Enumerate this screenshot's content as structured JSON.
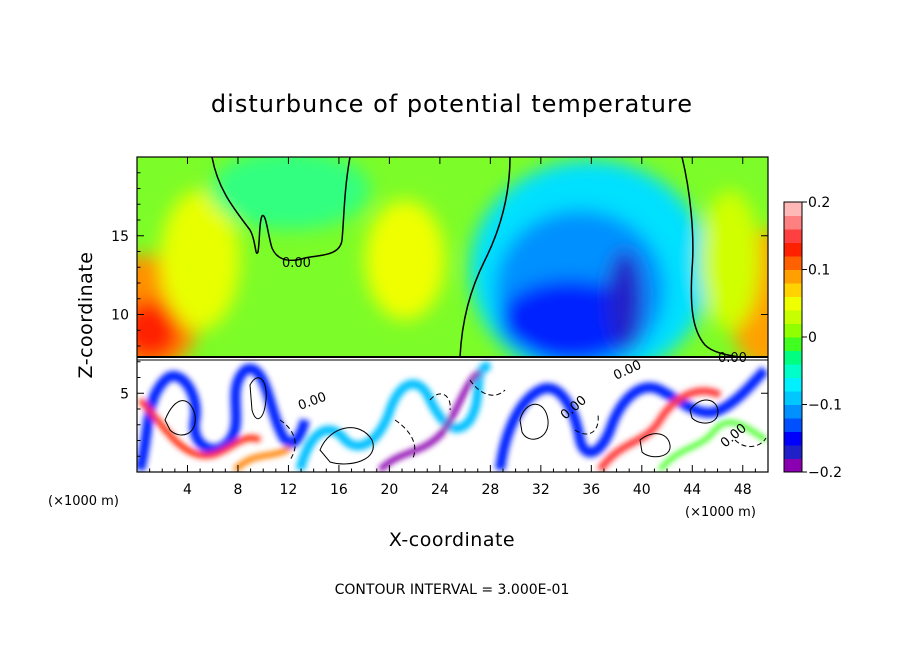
{
  "chart_data": {
    "type": "heatmap",
    "title": "disturbunce of potential temperature",
    "xlabel": "X-coordinate",
    "ylabel": "Z-coordinate",
    "x_unit": "(×1000 m)",
    "y_unit": "(×1000 m)",
    "xlim": [
      0,
      50
    ],
    "ylim": [
      0,
      20
    ],
    "x_ticks": [
      4,
      8,
      12,
      16,
      20,
      24,
      28,
      32,
      36,
      40,
      44,
      48
    ],
    "x_tick_labels": [
      "4",
      "8",
      "12",
      "16",
      "20",
      "24",
      "28",
      "32",
      "36",
      "40",
      "44",
      "48"
    ],
    "y_ticks": [
      5,
      10,
      15
    ],
    "y_tick_labels": [
      "5",
      "10",
      "15"
    ],
    "colorbar": {
      "range": [
        -0.2,
        0.2
      ],
      "ticks": [
        0.2,
        0.1,
        0,
        -0.1,
        -0.2
      ],
      "tick_labels": [
        "0.2",
        "0.1",
        "0",
        "−0.1",
        "−0.2"
      ],
      "colors": [
        "#8a00b0",
        "#2020c8",
        "#0000ff",
        "#0050ff",
        "#0090ff",
        "#00c8ff",
        "#00f0ff",
        "#00ffc8",
        "#00ff80",
        "#40ff20",
        "#90ff00",
        "#c8ff00",
        "#f0ff00",
        "#ffd200",
        "#ffa000",
        "#ff6000",
        "#ff2000",
        "#ff4040",
        "#ff8080",
        "#ffb8b8"
      ]
    },
    "features": [
      {
        "name": "warm anomaly",
        "x": 1.5,
        "z": 9.5,
        "value": 0.16
      },
      {
        "name": "warm anomaly",
        "x": 49,
        "z": 10,
        "value": 0.08
      },
      {
        "name": "cool anomaly",
        "x": 36,
        "z": 11,
        "value": -0.17
      },
      {
        "name": "cool anomaly",
        "x": 30,
        "z": 10,
        "value": -0.15
      },
      {
        "name": "weak cool",
        "x": 16,
        "z": 18.5,
        "value": -0.02
      },
      {
        "name": "weak warm",
        "x": 22,
        "z": 14,
        "value": 0.06
      }
    ],
    "contour_labels": [
      "0.00",
      "0.00",
      "0.00",
      "0.00",
      "0.00",
      "0.00"
    ],
    "footer": "CONTOUR INTERVAL = 3.000E-01"
  }
}
